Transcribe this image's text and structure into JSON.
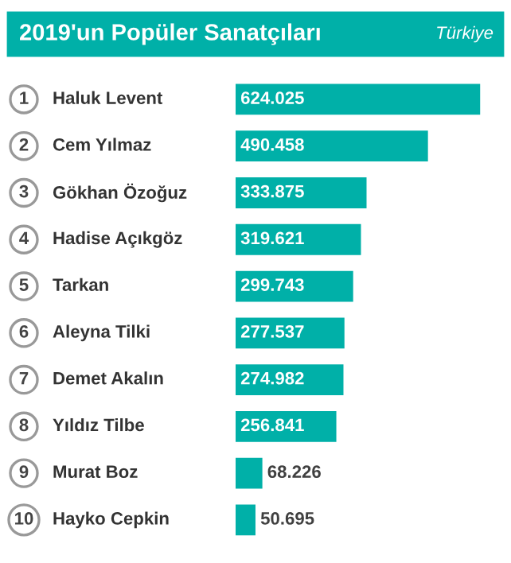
{
  "chart_data": {
    "type": "bar",
    "orientation": "horizontal",
    "title": "2019'un Popüler Sanatçıları",
    "subtitle": "Türkiye",
    "categories": [
      "Haluk Levent",
      "Cem Yılmaz",
      "Gökhan Özoğuz",
      "Hadise Açıkgöz",
      "Tarkan",
      "Aleyna Tilki",
      "Demet Akalın",
      "Yıldız Tilbe",
      "Murat Boz",
      "Hayko Cepkin"
    ],
    "values": [
      624025,
      490458,
      333875,
      319621,
      299743,
      277537,
      274982,
      256841,
      68226,
      50695
    ],
    "value_labels": [
      "624.025",
      "490.458",
      "333.875",
      "319.621",
      "299.743",
      "277.537",
      "274.982",
      "256.841",
      "68.226",
      "50.695"
    ],
    "annotations": [
      "1",
      "2",
      "3",
      "4",
      "5",
      "6",
      "7",
      "8",
      "9",
      "10"
    ],
    "color": "#00b0a8"
  }
}
